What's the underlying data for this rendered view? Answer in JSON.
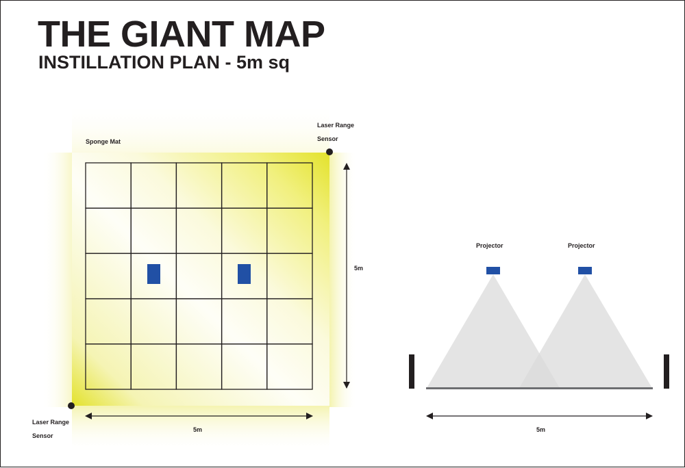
{
  "header": {
    "title": "THE GIANT MAP",
    "subtitle": "INSTILLATION PLAN - 5m sq"
  },
  "plan_view": {
    "mat_label": "Sponge Mat",
    "sensor_top_right": [
      "Laser Range",
      "Sensor"
    ],
    "sensor_bottom_left": [
      "Laser Range",
      "Sensor"
    ],
    "width_label": "5m",
    "height_label": "5m",
    "grid": {
      "rows": 5,
      "cols": 5
    },
    "mat_color": "#e3e22c",
    "projector_color": "#2150a5"
  },
  "side_view": {
    "projector_labels": [
      "Projector",
      "Projector"
    ],
    "width_label": "5m",
    "beam_color": "#e0e0e0",
    "post_color": "#231f20"
  }
}
